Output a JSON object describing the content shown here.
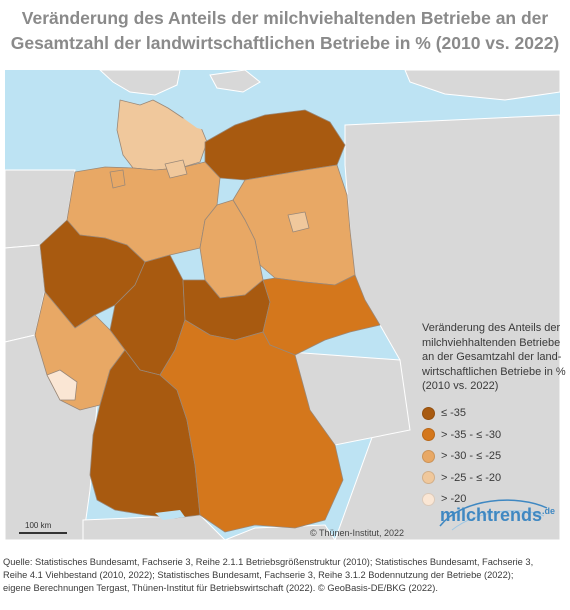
{
  "title": {
    "line1": "Veränderung des Anteils der milchviehaltenden Betriebe an der",
    "line2": "Gesamtzahl der landwirtschaftlichen Betriebe in % (2010 vs. 2022)"
  },
  "legend": {
    "title_lines": [
      "Veränderung des Anteils der",
      "milchviehhaltenden Betriebe",
      "an der Gesamtzahl der land-",
      "wirtschaftlichen Betriebe in %",
      "(2010 vs. 2022)"
    ],
    "items": [
      {
        "label": "≤ -35",
        "color": "#a85a10"
      },
      {
        "label": "> -35 - ≤ -30",
        "color": "#d4771c"
      },
      {
        "label": "> -30 - ≤ -25",
        "color": "#e8a865"
      },
      {
        "label": "> -25 - ≤ -20",
        "color": "#f0c89c"
      },
      {
        "label": "> -20",
        "color": "#fae6d4"
      }
    ]
  },
  "map": {
    "water_color": "#bde3f3",
    "neighbor_color": "#d8d8d8",
    "states": [
      {
        "name": "Schleswig-Holstein",
        "class": "> -25 - ≤ -20",
        "color": "#f0c89c"
      },
      {
        "name": "Hamburg",
        "class": "> -25 - ≤ -20",
        "color": "#f0c89c"
      },
      {
        "name": "Mecklenburg-Vorpommern",
        "class": "≤ -35",
        "color": "#a85a10"
      },
      {
        "name": "Niedersachsen",
        "class": "> -30 - ≤ -25",
        "color": "#e8a865"
      },
      {
        "name": "Bremen",
        "class": "> -30 - ≤ -25",
        "color": "#e8a865"
      },
      {
        "name": "Brandenburg",
        "class": "> -30 - ≤ -25",
        "color": "#e8a865"
      },
      {
        "name": "Berlin",
        "class": "> -25 - ≤ -20",
        "color": "#f0c89c"
      },
      {
        "name": "Sachsen-Anhalt",
        "class": "> -30 - ≤ -25",
        "color": "#e8a865"
      },
      {
        "name": "Nordrhein-Westfalen",
        "class": "≤ -35",
        "color": "#a85a10"
      },
      {
        "name": "Hessen",
        "class": "≤ -35",
        "color": "#a85a10"
      },
      {
        "name": "Thüringen",
        "class": "≤ -35",
        "color": "#a85a10"
      },
      {
        "name": "Sachsen",
        "class": "> -35 - ≤ -30",
        "color": "#d4771c"
      },
      {
        "name": "Rheinland-Pfalz",
        "class": "> -30 - ≤ -25",
        "color": "#e8a865"
      },
      {
        "name": "Saarland",
        "class": "> -20",
        "color": "#fae6d4"
      },
      {
        "name": "Baden-Württemberg",
        "class": "≤ -35",
        "color": "#a85a10"
      },
      {
        "name": "Bayern",
        "class": "> -35 - ≤ -30",
        "color": "#d4771c"
      }
    ]
  },
  "scale_label": "100 km",
  "copyright": "© Thünen-Institut, 2022",
  "logo": {
    "main": "milchtrends",
    "suffix": ".de",
    "color": "#3f88c2"
  },
  "source_lines": [
    "Quelle: Statistisches Bundesamt, Fachserie 3, Reihe 2.1.1 Betriebsgrößenstruktur (2010); Statistisches Bundesamt, Fachserie 3,",
    "Reihe 4.1 Viehbestand (2010, 2022); Statistisches Bundesamt, Fachserie 3, Reihe 3.1.2 Bodennutzung der Betriebe (2022);",
    "eigene Berechnungen Tergast, Thünen-Institut für Betriebswirtschaft (2022). © GeoBasis-DE/BKG (2022)."
  ]
}
